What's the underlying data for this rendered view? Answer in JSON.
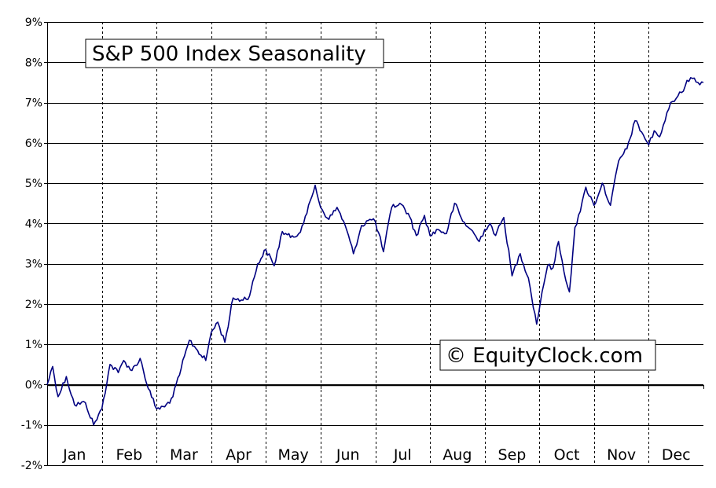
{
  "chart_data": {
    "type": "line",
    "title": "S&P 500 Index Seasonality",
    "watermark": "© EquityClock.com",
    "xlabel": "",
    "ylabel": "",
    "ylim": [
      -2,
      9
    ],
    "y_tick_values": [
      -2,
      -1,
      0,
      1,
      2,
      3,
      4,
      5,
      6,
      7,
      8,
      9
    ],
    "y_tick_labels": [
      "-2%",
      "-1%",
      "0%",
      "1%",
      "2%",
      "3%",
      "4%",
      "5%",
      "6%",
      "7%",
      "8%",
      "9%"
    ],
    "months": [
      "Jan",
      "Feb",
      "Mar",
      "Apr",
      "May",
      "Jun",
      "Jul",
      "Aug",
      "Sep",
      "Oct",
      "Nov",
      "Dec"
    ],
    "grid": {
      "horizontal": "solid",
      "vertical": "dashed"
    },
    "line_color": "#000080",
    "series": [
      {
        "x": [
          0,
          0.1,
          0.2,
          0.35,
          0.5,
          0.7,
          0.85,
          1.0,
          1.15,
          1.3,
          1.4,
          1.55,
          1.7,
          1.85,
          2.0,
          2.15,
          2.3,
          2.45,
          2.6,
          2.75,
          2.9,
          3.0,
          3.12,
          3.25,
          3.4,
          3.55,
          3.7,
          3.85,
          4.0,
          4.15,
          4.3,
          4.45,
          4.6,
          4.75,
          4.9,
          5.0,
          5.15,
          5.3,
          5.45,
          5.6,
          5.75,
          5.9,
          6.0,
          6.15,
          6.3,
          6.45,
          6.6,
          6.75,
          6.9,
          7.0,
          7.15,
          7.3,
          7.45,
          7.6,
          7.75,
          7.9,
          8.0,
          8.1,
          8.2,
          8.35,
          8.5,
          8.65,
          8.8,
          8.95,
          9.05,
          9.15,
          9.25,
          9.35,
          9.45,
          9.55,
          9.65,
          9.75,
          9.85,
          10.0,
          10.15,
          10.3,
          10.45,
          10.6,
          10.75,
          10.9,
          11.0,
          11.1,
          11.2,
          11.3,
          11.4,
          11.5,
          11.6,
          11.7,
          11.8,
          11.9,
          12.0
        ],
        "y": [
          0.0,
          0.45,
          -0.3,
          0.2,
          -0.5,
          -0.45,
          -1.0,
          -0.6,
          0.5,
          0.3,
          0.6,
          0.35,
          0.65,
          -0.1,
          -0.6,
          -0.55,
          -0.3,
          0.4,
          1.1,
          0.85,
          0.6,
          1.3,
          1.55,
          1.05,
          2.15,
          2.1,
          2.2,
          3.0,
          3.35,
          2.95,
          3.8,
          3.65,
          3.75,
          4.25,
          4.95,
          4.4,
          4.1,
          4.4,
          3.95,
          3.25,
          3.95,
          4.1,
          4.05,
          3.3,
          4.4,
          4.5,
          4.25,
          3.7,
          4.2,
          3.7,
          3.85,
          3.75,
          4.5,
          4.05,
          3.85,
          3.55,
          3.85,
          4.0,
          3.7,
          4.15,
          2.7,
          3.25,
          2.65,
          1.5,
          2.3,
          2.95,
          2.9,
          3.55,
          2.8,
          2.3,
          3.9,
          4.3,
          4.9,
          4.45,
          5.0,
          4.45,
          5.55,
          5.85,
          6.55,
          6.2,
          5.95,
          6.3,
          6.15,
          6.55,
          7.0,
          7.1,
          7.25,
          7.55,
          7.6,
          7.5,
          7.5
        ]
      }
    ]
  }
}
